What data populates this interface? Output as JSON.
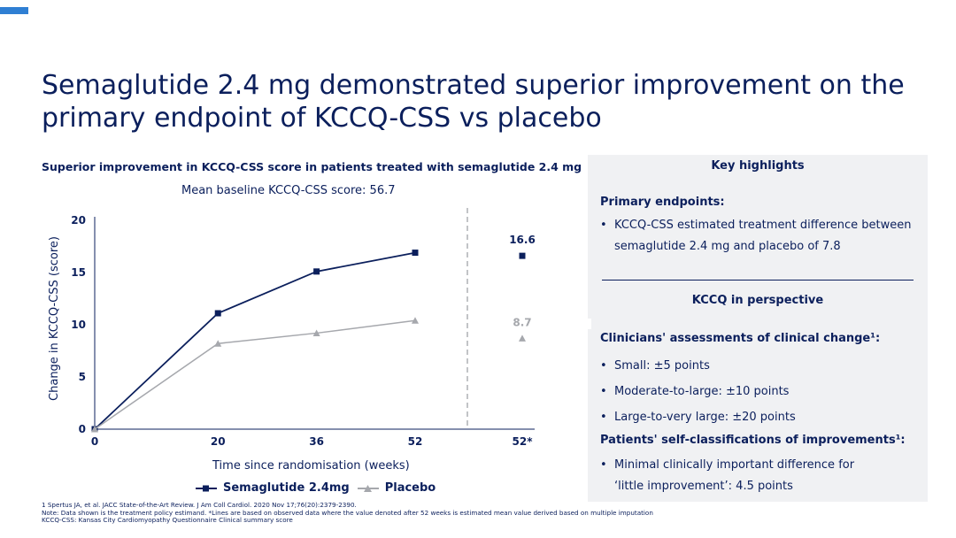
{
  "title": "Semaglutide 2.4 mg demonstrated superior improvement on the primary endpoint of KCCQ-CSS vs placebo",
  "chart_heading": "Superior improvement in KCCQ-CSS score in patients treated with semaglutide 2.4 mg",
  "chart_subheading": "Mean baseline KCCQ-CSS score: 56.7",
  "chart_data": {
    "type": "line",
    "categories": [
      "0",
      "20",
      "36",
      "52",
      "52*"
    ],
    "x": [
      0,
      20,
      36,
      52
    ],
    "ylabel": "Change in KCCQ-CSS (score)",
    "xlabel": "Time since randomisation (weeks)",
    "ylim": [
      0,
      20
    ],
    "yticks": [
      "0",
      "5",
      "10",
      "15",
      "20"
    ],
    "grid": false,
    "legend_placement": "bottom",
    "series": [
      {
        "name": "Semaglutide 2.4mg",
        "values": [
          0,
          11.1,
          15.1,
          16.9
        ],
        "estimate_52star": 16.6,
        "estimate_label": "16.6",
        "color": "#0b1f5c",
        "marker": "square"
      },
      {
        "name": "Placebo",
        "values": [
          0,
          8.2,
          9.2,
          10.4
        ],
        "estimate_52star": 8.7,
        "estimate_label": "8.7",
        "color": "#a6a8ad",
        "marker": "triangle"
      }
    ]
  },
  "panel": {
    "key_highlights": "Key highlights",
    "primary_endpoints": "Primary endpoints:",
    "primary_bullet_line1": "KCCQ-CSS estimated treatment difference between",
    "primary_bullet_line2": "semaglutide 2.4 mg and placebo of 7.8",
    "kccq_perspective": "KCCQ in perspective",
    "clinicians_heading": "Clinicians' assessments of clinical change¹:",
    "clinicians_bullets": [
      "Small: ±5 points",
      "Moderate-to-large: ±10 points",
      "Large-to-very large: ±20 points"
    ],
    "patients_heading": "Patients' self-classifications of improvements¹:",
    "patients_bullet_line1": "Minimal clinically important difference for",
    "patients_bullet_line2": "‘little improvement’: 4.5 points"
  },
  "footnotes": [
    "1 Spertus JA, et al. JACC State-of-the-Art Review. J Am Coll Cardiol. 2020 Nov 17;76(20):2379-2390.",
    "Note: Data shown is the treatment policy estimand. *Lines are based on observed data where the value denoted after 52 weeks is estimated mean value derived based on multiple imputation",
    "KCCQ-CSS: Kansas City Cardiomyopathy Questionnaire Clinical summary score"
  ],
  "colors": {
    "primary": "#0b1f5c",
    "accent": "#2f7fd3",
    "placebo": "#a6a8ad",
    "panel_bg": "#f0f1f3"
  }
}
